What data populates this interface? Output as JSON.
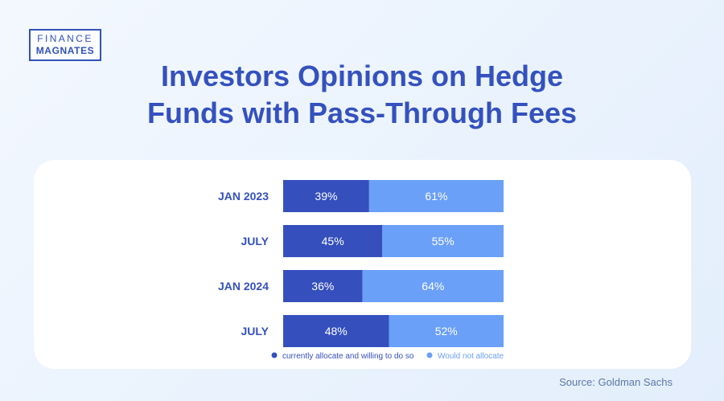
{
  "logo": {
    "line1": "FINANCE",
    "line2": "MAGNATES"
  },
  "title": {
    "line1": "Investors Opinions on Hedge",
    "line2": "Funds with Pass-Through Fees"
  },
  "source": "Source: Goldman Sachs",
  "colors": {
    "dark": "#3550bd",
    "light": "#6aa0f8",
    "title": "#3451be",
    "category_text": "#3451be"
  },
  "chart_data": {
    "type": "bar",
    "orientation": "horizontal",
    "stacked": true,
    "categories": [
      "JAN 2023",
      "JULY",
      "JAN 2024",
      "JULY"
    ],
    "series": [
      {
        "name": "currently allocate and willing to do so",
        "values": [
          39,
          45,
          36,
          48
        ],
        "labels": [
          "39%",
          "45%",
          "36%",
          "48%"
        ],
        "color": "#3550bd"
      },
      {
        "name": "Would not allocate",
        "values": [
          61,
          55,
          64,
          52
        ],
        "labels": [
          "61%",
          "55%",
          "64%",
          "52%"
        ],
        "color": "#6aa0f8"
      }
    ],
    "xlim": [
      0,
      100
    ],
    "legend_position": "bottom"
  }
}
